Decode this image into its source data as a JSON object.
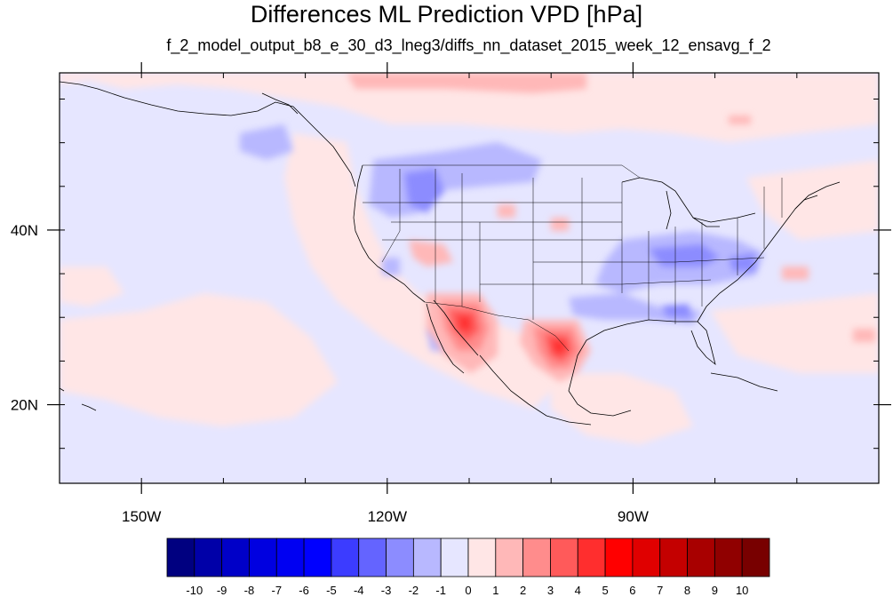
{
  "figure": {
    "title": "Differences ML Prediction VPD [hPa]",
    "subtitle": "f_2_model_output_b8_e_30_d3_lneg3/diffs_nn_dataset_2015_week_12_ensavg_f_2"
  },
  "map": {
    "projection": "cylindrical-equidistant",
    "lon_range": [
      -160,
      -60
    ],
    "lat_range": [
      11,
      58
    ],
    "background_color": "#e6e6ff",
    "x_ticks": [
      {
        "lon": -150,
        "label": "150W"
      },
      {
        "lon": -120,
        "label": "120W"
      },
      {
        "lon": -90,
        "label": "90W"
      }
    ],
    "y_ticks": [
      {
        "lat": 40,
        "label": "40N"
      },
      {
        "lat": 20,
        "label": "20N"
      }
    ]
  },
  "colorbar": {
    "levels": [
      "-10",
      "-9",
      "-8",
      "-7",
      "-6",
      "-5",
      "-4",
      "-3",
      "-2",
      "-1",
      "0",
      "1",
      "2",
      "3",
      "4",
      "5",
      "6",
      "7",
      "8",
      "9",
      "10"
    ],
    "colors": [
      "#000080",
      "#0000a8",
      "#0000c8",
      "#0000e0",
      "#0000f2",
      "#0000ff",
      "#3c3cff",
      "#6464ff",
      "#8c8cff",
      "#b8b8ff",
      "#e6e6ff",
      "#ffe6e6",
      "#ffb8b8",
      "#ff8c8c",
      "#ff5a5a",
      "#ff2e2e",
      "#ff0000",
      "#e00000",
      "#c40000",
      "#a80000",
      "#900000",
      "#780000"
    ]
  }
}
